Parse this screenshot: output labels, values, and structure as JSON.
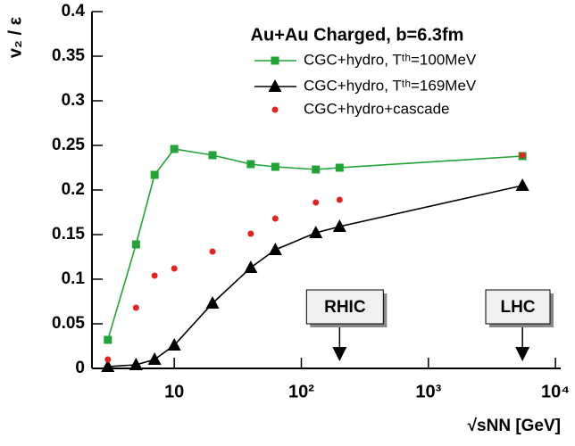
{
  "chart_data": {
    "type": "line",
    "title": "Au+Au Charged, b=6.3fm",
    "x_label": "√sNN [GeV]",
    "y_label": "v₂ / ε",
    "x_scale": "log",
    "xlim": [
      2.25,
      11000
    ],
    "ylim": [
      0,
      0.4
    ],
    "xticks": [
      10,
      {
        "value": 100,
        "label": "10²"
      },
      {
        "value": 1000,
        "label": "10³"
      },
      {
        "value": 10000,
        "label": "10⁴"
      }
    ],
    "yticks": [
      0,
      0.05,
      0.1,
      0.15,
      0.2,
      0.25,
      0.3,
      0.35,
      0.4
    ],
    "legend": "top-right",
    "series": [
      {
        "name": "CGC+hydro, Tᵗʰ=100MeV",
        "color": "#21a336",
        "marker": "square",
        "line": true,
        "x": [
          3,
          5,
          7,
          10,
          20,
          40,
          62.4,
          130,
          200,
          5500
        ],
        "values": [
          0.032,
          0.139,
          0.217,
          0.246,
          0.239,
          0.229,
          0.226,
          0.223,
          0.225,
          0.238
        ]
      },
      {
        "name": "CGC+hydro, Tᵗʰ=169MeV",
        "color": "#000000",
        "marker": "triangle",
        "line": true,
        "x": [
          3,
          5,
          7,
          10,
          20,
          40,
          62.4,
          130,
          200,
          5500
        ],
        "values": [
          0.002,
          0.004,
          0.01,
          0.026,
          0.073,
          0.113,
          0.133,
          0.152,
          0.159,
          0.205
        ]
      },
      {
        "name": "CGC+hydro+cascade",
        "color": "#e52222",
        "marker": "circle",
        "line": false,
        "x": [
          3,
          5,
          7,
          10,
          20,
          40,
          62.4,
          130,
          200,
          5500
        ],
        "values": [
          0.01,
          0.068,
          0.104,
          0.112,
          0.131,
          0.151,
          0.168,
          0.186,
          0.189,
          0.239
        ]
      }
    ],
    "annotations": [
      {
        "text": "RHIC",
        "x": 200
      },
      {
        "text": "LHC",
        "x": 5500
      }
    ]
  }
}
